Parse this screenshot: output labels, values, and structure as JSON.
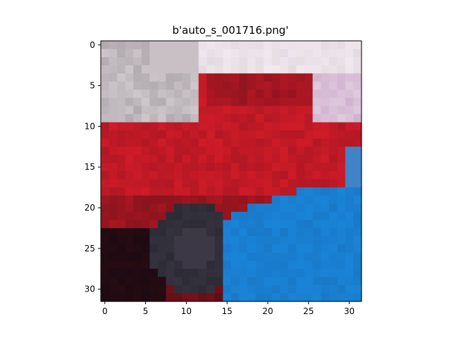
{
  "title": "b'auto_s_001716.png'",
  "image": {
    "description_free": true,
    "rows": 32,
    "cols": 32
  },
  "axes": {
    "x_ticks": [
      0,
      5,
      10,
      15,
      20,
      25,
      30
    ],
    "y_ticks": [
      0,
      5,
      10,
      15,
      20,
      25,
      30
    ],
    "x_range": [
      -0.5,
      31.5
    ],
    "y_range": [
      -0.5,
      31.5
    ]
  },
  "colors": {
    "background": "#ffffff",
    "spine": "#000000",
    "car_red": "#d81c2a",
    "car_dark": "#3a0b10",
    "floor_blue": "#1a83d6",
    "sky_white": "#f6eef4",
    "gray": "#a9a2a6",
    "tire": "#2c2b35"
  }
}
